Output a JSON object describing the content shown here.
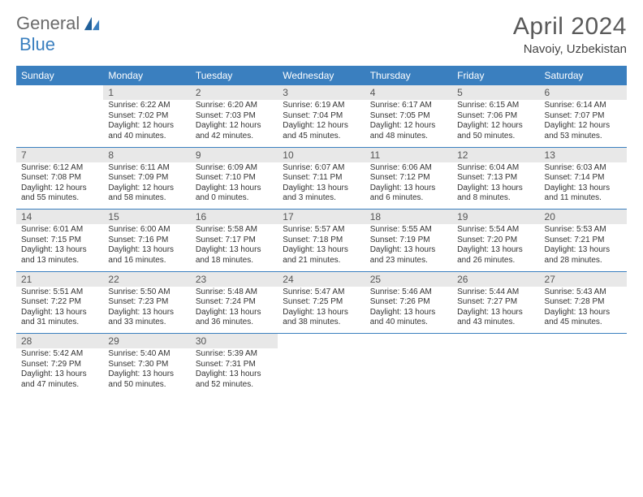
{
  "brand": {
    "part1": "General",
    "part2": "Blue"
  },
  "title": "April 2024",
  "location": "Navoiy, Uzbekistan",
  "colors": {
    "header_bg": "#3a7fbf",
    "header_text": "#ffffff",
    "daynum_bg": "#e8e8e8",
    "daynum_text": "#555555",
    "body_text": "#333333",
    "rule": "#3a7fbf",
    "page_bg": "#ffffff"
  },
  "fonts": {
    "title_size": 30,
    "subtitle_size": 15,
    "dayhead_size": 12,
    "body_size": 10
  },
  "weekdays": [
    "Sunday",
    "Monday",
    "Tuesday",
    "Wednesday",
    "Thursday",
    "Friday",
    "Saturday"
  ],
  "weeks": [
    {
      "nums": [
        "",
        "1",
        "2",
        "3",
        "4",
        "5",
        "6"
      ],
      "cells": [
        {
          "empty": true
        },
        {
          "sunrise": "Sunrise: 6:22 AM",
          "sunset": "Sunset: 7:02 PM",
          "day1": "Daylight: 12 hours",
          "day2": "and 40 minutes."
        },
        {
          "sunrise": "Sunrise: 6:20 AM",
          "sunset": "Sunset: 7:03 PM",
          "day1": "Daylight: 12 hours",
          "day2": "and 42 minutes."
        },
        {
          "sunrise": "Sunrise: 6:19 AM",
          "sunset": "Sunset: 7:04 PM",
          "day1": "Daylight: 12 hours",
          "day2": "and 45 minutes."
        },
        {
          "sunrise": "Sunrise: 6:17 AM",
          "sunset": "Sunset: 7:05 PM",
          "day1": "Daylight: 12 hours",
          "day2": "and 48 minutes."
        },
        {
          "sunrise": "Sunrise: 6:15 AM",
          "sunset": "Sunset: 7:06 PM",
          "day1": "Daylight: 12 hours",
          "day2": "and 50 minutes."
        },
        {
          "sunrise": "Sunrise: 6:14 AM",
          "sunset": "Sunset: 7:07 PM",
          "day1": "Daylight: 12 hours",
          "day2": "and 53 minutes."
        }
      ]
    },
    {
      "nums": [
        "7",
        "8",
        "9",
        "10",
        "11",
        "12",
        "13"
      ],
      "cells": [
        {
          "sunrise": "Sunrise: 6:12 AM",
          "sunset": "Sunset: 7:08 PM",
          "day1": "Daylight: 12 hours",
          "day2": "and 55 minutes."
        },
        {
          "sunrise": "Sunrise: 6:11 AM",
          "sunset": "Sunset: 7:09 PM",
          "day1": "Daylight: 12 hours",
          "day2": "and 58 minutes."
        },
        {
          "sunrise": "Sunrise: 6:09 AM",
          "sunset": "Sunset: 7:10 PM",
          "day1": "Daylight: 13 hours",
          "day2": "and 0 minutes."
        },
        {
          "sunrise": "Sunrise: 6:07 AM",
          "sunset": "Sunset: 7:11 PM",
          "day1": "Daylight: 13 hours",
          "day2": "and 3 minutes."
        },
        {
          "sunrise": "Sunrise: 6:06 AM",
          "sunset": "Sunset: 7:12 PM",
          "day1": "Daylight: 13 hours",
          "day2": "and 6 minutes."
        },
        {
          "sunrise": "Sunrise: 6:04 AM",
          "sunset": "Sunset: 7:13 PM",
          "day1": "Daylight: 13 hours",
          "day2": "and 8 minutes."
        },
        {
          "sunrise": "Sunrise: 6:03 AM",
          "sunset": "Sunset: 7:14 PM",
          "day1": "Daylight: 13 hours",
          "day2": "and 11 minutes."
        }
      ]
    },
    {
      "nums": [
        "14",
        "15",
        "16",
        "17",
        "18",
        "19",
        "20"
      ],
      "cells": [
        {
          "sunrise": "Sunrise: 6:01 AM",
          "sunset": "Sunset: 7:15 PM",
          "day1": "Daylight: 13 hours",
          "day2": "and 13 minutes."
        },
        {
          "sunrise": "Sunrise: 6:00 AM",
          "sunset": "Sunset: 7:16 PM",
          "day1": "Daylight: 13 hours",
          "day2": "and 16 minutes."
        },
        {
          "sunrise": "Sunrise: 5:58 AM",
          "sunset": "Sunset: 7:17 PM",
          "day1": "Daylight: 13 hours",
          "day2": "and 18 minutes."
        },
        {
          "sunrise": "Sunrise: 5:57 AM",
          "sunset": "Sunset: 7:18 PM",
          "day1": "Daylight: 13 hours",
          "day2": "and 21 minutes."
        },
        {
          "sunrise": "Sunrise: 5:55 AM",
          "sunset": "Sunset: 7:19 PM",
          "day1": "Daylight: 13 hours",
          "day2": "and 23 minutes."
        },
        {
          "sunrise": "Sunrise: 5:54 AM",
          "sunset": "Sunset: 7:20 PM",
          "day1": "Daylight: 13 hours",
          "day2": "and 26 minutes."
        },
        {
          "sunrise": "Sunrise: 5:53 AM",
          "sunset": "Sunset: 7:21 PM",
          "day1": "Daylight: 13 hours",
          "day2": "and 28 minutes."
        }
      ]
    },
    {
      "nums": [
        "21",
        "22",
        "23",
        "24",
        "25",
        "26",
        "27"
      ],
      "cells": [
        {
          "sunrise": "Sunrise: 5:51 AM",
          "sunset": "Sunset: 7:22 PM",
          "day1": "Daylight: 13 hours",
          "day2": "and 31 minutes."
        },
        {
          "sunrise": "Sunrise: 5:50 AM",
          "sunset": "Sunset: 7:23 PM",
          "day1": "Daylight: 13 hours",
          "day2": "and 33 minutes."
        },
        {
          "sunrise": "Sunrise: 5:48 AM",
          "sunset": "Sunset: 7:24 PM",
          "day1": "Daylight: 13 hours",
          "day2": "and 36 minutes."
        },
        {
          "sunrise": "Sunrise: 5:47 AM",
          "sunset": "Sunset: 7:25 PM",
          "day1": "Daylight: 13 hours",
          "day2": "and 38 minutes."
        },
        {
          "sunrise": "Sunrise: 5:46 AM",
          "sunset": "Sunset: 7:26 PM",
          "day1": "Daylight: 13 hours",
          "day2": "and 40 minutes."
        },
        {
          "sunrise": "Sunrise: 5:44 AM",
          "sunset": "Sunset: 7:27 PM",
          "day1": "Daylight: 13 hours",
          "day2": "and 43 minutes."
        },
        {
          "sunrise": "Sunrise: 5:43 AM",
          "sunset": "Sunset: 7:28 PM",
          "day1": "Daylight: 13 hours",
          "day2": "and 45 minutes."
        }
      ]
    },
    {
      "nums": [
        "28",
        "29",
        "30",
        "",
        "",
        "",
        ""
      ],
      "cells": [
        {
          "sunrise": "Sunrise: 5:42 AM",
          "sunset": "Sunset: 7:29 PM",
          "day1": "Daylight: 13 hours",
          "day2": "and 47 minutes."
        },
        {
          "sunrise": "Sunrise: 5:40 AM",
          "sunset": "Sunset: 7:30 PM",
          "day1": "Daylight: 13 hours",
          "day2": "and 50 minutes."
        },
        {
          "sunrise": "Sunrise: 5:39 AM",
          "sunset": "Sunset: 7:31 PM",
          "day1": "Daylight: 13 hours",
          "day2": "and 52 minutes."
        },
        {
          "empty": true
        },
        {
          "empty": true
        },
        {
          "empty": true
        },
        {
          "empty": true
        }
      ]
    }
  ]
}
